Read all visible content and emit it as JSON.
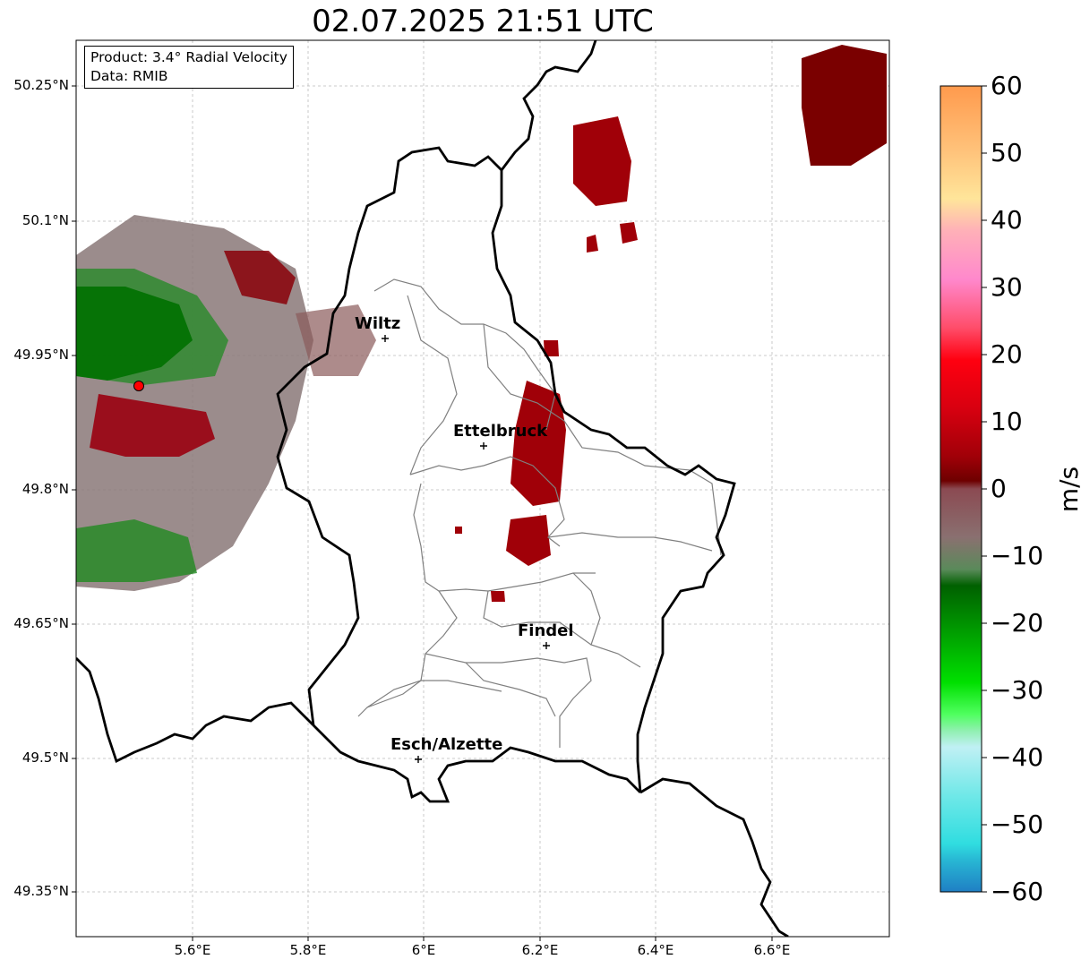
{
  "title": "02.07.2025 21:51 UTC",
  "info": {
    "product": "Product: 3.4° Radial Velocity",
    "data": "Data: RMIB"
  },
  "lat_labels": [
    "50.25°N",
    "50.1°N",
    "49.95°N",
    "49.8°N",
    "49.65°N",
    "49.5°N",
    "49.35°N"
  ],
  "lon_labels": [
    "5.6°E",
    "5.8°E",
    "6°E",
    "6.2°E",
    "6.4°E",
    "6.6°E"
  ],
  "cities": {
    "wiltz": "Wiltz",
    "ettelbruck": "Ettelbruck",
    "findel": "Findel",
    "esch": "Esch/Alzette"
  },
  "colorbar": {
    "unit": "m/s",
    "ticks": [
      "60",
      "50",
      "40",
      "30",
      "20",
      "10",
      "0",
      "−10",
      "−20",
      "−30",
      "−40",
      "−50",
      "−60"
    ],
    "range": [
      -60,
      60
    ]
  },
  "colors": {
    "radar_marker": "#ff0000",
    "border": "#000000",
    "canton": "#808080"
  }
}
